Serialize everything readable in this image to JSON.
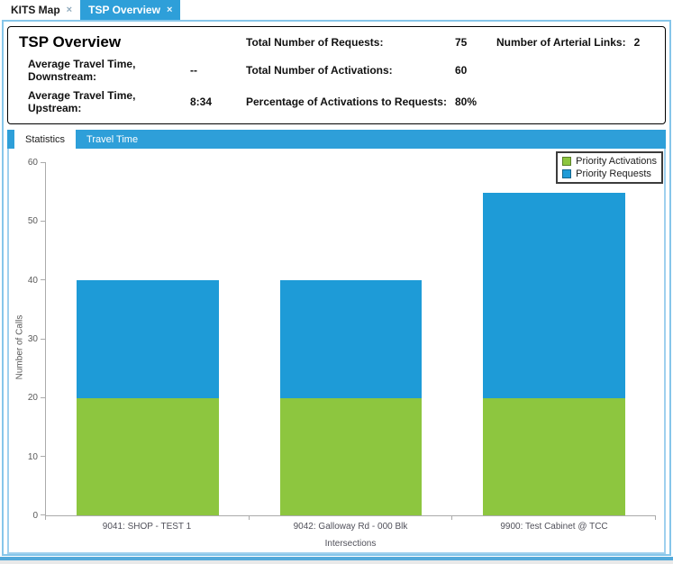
{
  "tab_bar": {
    "tabs": [
      {
        "label": "KITS Map",
        "close_glyph": "×"
      },
      {
        "label": "TSP Overview",
        "close_glyph": "×"
      }
    ]
  },
  "overview_panel": {
    "title": "TSP Overview",
    "downstream_label": "Average Travel Time, Downstream:",
    "downstream_value": "--",
    "upstream_label": "Average Travel Time, Upstream:",
    "upstream_value": "8:34",
    "requests_label": "Total Number of Requests:",
    "requests_value": "75",
    "activations_label": "Total Number of Activations:",
    "activations_value": "60",
    "percentage_label": "Percentage of Activations to Requests:",
    "percentage_value": "80%",
    "arterial_label": "Number of Arterial Links:",
    "arterial_value": "2"
  },
  "subtabs": {
    "statistics": "Statistics",
    "travel_time": "Travel Time"
  },
  "chart_data": {
    "type": "bar",
    "stacked": true,
    "title": "",
    "xlabel": "Intersections",
    "ylabel": "Number of Calls",
    "categories": [
      "9041: SHOP - TEST 1",
      "9042: Galloway Rd - 000 Blk",
      "9900: Test Cabinet @ TCC"
    ],
    "series": [
      {
        "name": "Priority Activations",
        "values": [
          20,
          20,
          20
        ],
        "color": "#8DC63F"
      },
      {
        "name": "Priority Requests",
        "values": [
          20,
          20,
          35
        ],
        "color": "#1E9BD7"
      }
    ],
    "stack_totals": [
      40,
      40,
      55
    ],
    "ylim": [
      0,
      60
    ],
    "yticks": [
      0,
      10,
      20,
      30,
      40,
      50,
      60
    ],
    "grid": false,
    "legend_position": "top-right"
  },
  "colors": {
    "accent_blue": "#2E9FD9",
    "bar_blue": "#1E9BD7",
    "bar_green": "#8DC63F",
    "outer_border": "#86C6EA",
    "inner_border": "#9FD0EE",
    "axis_line": "#ABABAB",
    "chart_text": "#595959"
  }
}
